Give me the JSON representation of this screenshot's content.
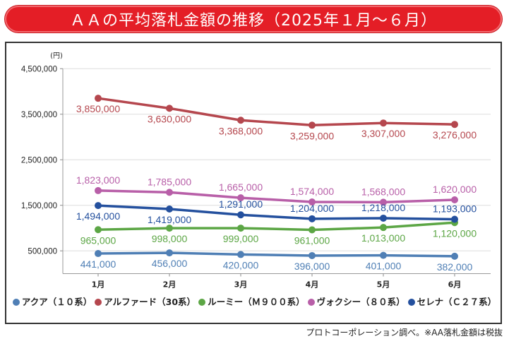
{
  "title": "ＡＡの平均落札金額の推移（2025年１月～６月）",
  "source_note": "プロトコーポレーション調べ。※AA落札金額は税抜",
  "chart_data": {
    "type": "line",
    "title": "ＡＡの平均落札金額の推移（2025年１月～６月）",
    "ylabel": "(円)",
    "xlabel": "",
    "categories": [
      "1月",
      "2月",
      "3月",
      "4月",
      "5月",
      "6月"
    ],
    "ylim": [
      0,
      4500000
    ],
    "yticks": [
      500000,
      1500000,
      2500000,
      3500000,
      4500000
    ],
    "ytick_labels": [
      "500,000",
      "1,500,000",
      "2,500,000",
      "3,500,000",
      "4,500,000"
    ],
    "grid": true,
    "legend_position": "bottom",
    "series": [
      {
        "name": "アクア（１０系）",
        "color": "#4f7fb5",
        "label_pos": "below",
        "values": [
          441000,
          456000,
          420000,
          396000,
          401000,
          382000
        ],
        "labels": [
          "441,000",
          "456,000",
          "420,000",
          "396,000",
          "401,000",
          "382,000"
        ]
      },
      {
        "name": "アルファード（30系）",
        "color": "#b5474e",
        "label_pos": "below",
        "values": [
          3850000,
          3630000,
          3368000,
          3259000,
          3307000,
          3276000
        ],
        "labels": [
          "3,850,000",
          "3,630,000",
          "3,368,000",
          "3,259,000",
          "3,307,000",
          "3,276,000"
        ]
      },
      {
        "name": "ルーミー（Ｍ９００系）",
        "color": "#5ca645",
        "label_pos": "below",
        "values": [
          965000,
          998000,
          999000,
          961000,
          1013000,
          1120000
        ],
        "labels": [
          "965,000",
          "998,000",
          "999,000",
          "961,000",
          "1,013,000",
          "1,120,000"
        ]
      },
      {
        "name": "ヴォクシー（８０系）",
        "color": "#b85fa8",
        "label_pos": "above",
        "values": [
          1823000,
          1785000,
          1665000,
          1574000,
          1568000,
          1620000
        ],
        "labels": [
          "1,823,000",
          "1,785,000",
          "1,665,000",
          "1,574,000",
          "1,568,000",
          "1,620,000"
        ]
      },
      {
        "name": "セレナ（Ｃ２７系）",
        "color": "#24509e",
        "label_pos": "mixed",
        "values": [
          1494000,
          1419000,
          1291000,
          1204000,
          1218000,
          1193000
        ],
        "labels": [
          "1,494,000",
          "1,419,000",
          "1,291,000",
          "1,204,000",
          "1,218,000",
          "1,193,000"
        ]
      }
    ]
  }
}
